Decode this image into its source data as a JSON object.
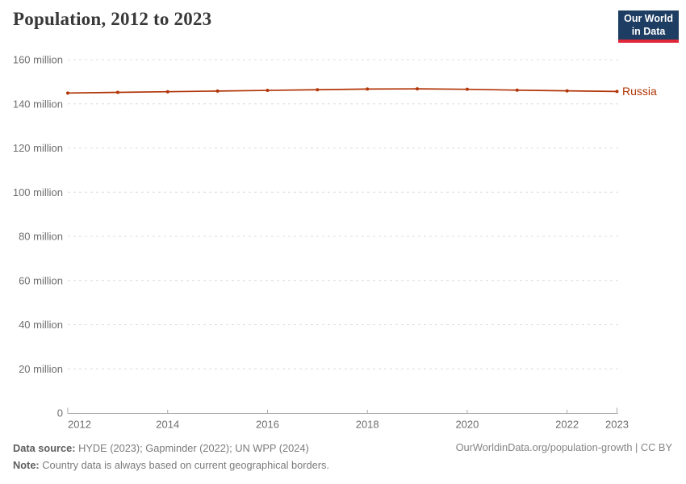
{
  "header": {
    "title": "Population, 2012 to 2023",
    "logo_line1": "Our World",
    "logo_line2": "in Data"
  },
  "chart_data": {
    "type": "line",
    "title": "Population, 2012 to 2023",
    "x": [
      2012,
      2013,
      2014,
      2015,
      2016,
      2017,
      2018,
      2019,
      2020,
      2021,
      2022,
      2023
    ],
    "series": [
      {
        "name": "Russia",
        "color": "#b13507",
        "unit": "people (millions)",
        "values_millions": [
          144.9,
          145.2,
          145.5,
          145.8,
          146.1,
          146.4,
          146.7,
          146.8,
          146.6,
          146.2,
          145.9,
          145.6
        ]
      }
    ],
    "ylim_millions": [
      0,
      160
    ],
    "yticks": [
      {
        "value_millions": 0,
        "label": "0"
      },
      {
        "value_millions": 20,
        "label": "20 million"
      },
      {
        "value_millions": 40,
        "label": "40 million"
      },
      {
        "value_millions": 60,
        "label": "60 million"
      },
      {
        "value_millions": 80,
        "label": "80 million"
      },
      {
        "value_millions": 100,
        "label": "100 million"
      },
      {
        "value_millions": 120,
        "label": "120 million"
      },
      {
        "value_millions": 140,
        "label": "140 million"
      },
      {
        "value_millions": 160,
        "label": "160 million"
      }
    ],
    "xticks": [
      2012,
      2014,
      2016,
      2018,
      2020,
      2022,
      2023
    ],
    "grid": "horizontal-dashed",
    "legend": "inline-end-of-line-label"
  },
  "footer": {
    "data_source_label": "Data source:",
    "data_source_text": " HYDE (2023); Gapminder (2022); UN WPP (2024)",
    "note_label": "Note:",
    "note_text": " Country data is always based on current geographical borders.",
    "link": "OurWorldinData.org/population-growth | CC BY"
  },
  "colors": {
    "series_russia": "#b13507",
    "logo_background": "#1d3d63",
    "logo_accent_bar": "#e0273a",
    "gridline": "#dcdcdc",
    "axis": "#a8a8a8",
    "title_text": "#383838",
    "tick_text": "#6e6e6e",
    "footer_text": "#7b7b7b"
  }
}
